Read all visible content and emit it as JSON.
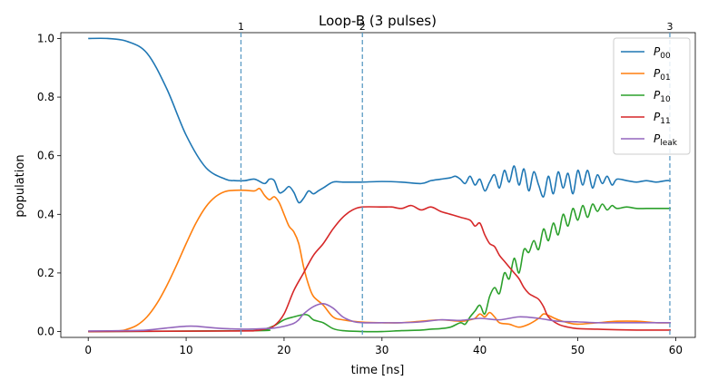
{
  "chart_data": {
    "type": "line",
    "title": "Loop-B (3 pulses)",
    "xlabel": "time [ns]",
    "ylabel": "population",
    "xlim": [
      -2.8,
      62.0
    ],
    "ylim": [
      -0.02,
      1.02
    ],
    "xticks": [
      0,
      10,
      20,
      30,
      40,
      50,
      60
    ],
    "yticks": [
      0.0,
      0.2,
      0.4,
      0.6,
      0.8,
      1.0
    ],
    "xtick_labels": [
      "0",
      "10",
      "20",
      "30",
      "40",
      "50",
      "60"
    ],
    "ytick_labels": [
      "0.0",
      "0.2",
      "0.4",
      "0.6",
      "0.8",
      "1.0"
    ],
    "grid": false,
    "legend_position": "top-right",
    "markers": [
      {
        "x": 15.6,
        "label": "1"
      },
      {
        "x": 28.0,
        "label": "2"
      },
      {
        "x": 59.4,
        "label": "3"
      }
    ],
    "series": [
      {
        "name": "P",
        "subscript": "00",
        "color": "#1f77b4",
        "x": [
          0,
          2,
          4,
          6,
          8,
          10,
          12,
          14,
          15,
          16,
          17,
          18,
          18.5,
          19,
          19.5,
          20,
          20.5,
          21,
          21.5,
          22,
          22.5,
          23,
          23.5,
          24,
          25,
          26,
          27,
          28,
          30,
          32,
          34,
          35,
          36,
          37,
          37.5,
          38,
          38.5,
          39,
          39.5,
          40,
          40.5,
          41,
          41.5,
          42,
          42.5,
          43,
          43.5,
          44,
          44.5,
          45,
          45.5,
          46,
          46.5,
          47,
          47.5,
          48,
          48.5,
          49,
          49.5,
          50,
          50.5,
          51,
          51.5,
          52,
          52.5,
          53,
          53.5,
          54,
          55,
          56,
          57,
          58,
          59,
          59.5
        ],
        "y": [
          1.0,
          1.0,
          0.99,
          0.95,
          0.83,
          0.67,
          0.56,
          0.52,
          0.515,
          0.515,
          0.52,
          0.505,
          0.52,
          0.515,
          0.475,
          0.48,
          0.495,
          0.475,
          0.44,
          0.455,
          0.48,
          0.47,
          0.48,
          0.49,
          0.51,
          0.51,
          0.51,
          0.51,
          0.512,
          0.51,
          0.505,
          0.515,
          0.52,
          0.525,
          0.53,
          0.52,
          0.505,
          0.53,
          0.5,
          0.52,
          0.48,
          0.51,
          0.535,
          0.49,
          0.55,
          0.51,
          0.565,
          0.5,
          0.555,
          0.48,
          0.545,
          0.5,
          0.46,
          0.53,
          0.47,
          0.545,
          0.49,
          0.54,
          0.47,
          0.55,
          0.5,
          0.55,
          0.49,
          0.535,
          0.505,
          0.53,
          0.5,
          0.52,
          0.515,
          0.51,
          0.515,
          0.51,
          0.515,
          0.515
        ]
      },
      {
        "name": "P",
        "subscript": "01",
        "color": "#ff7f0e",
        "x": [
          0,
          3,
          4,
          5,
          6,
          7,
          8,
          9,
          10,
          11,
          12,
          13,
          14,
          15,
          16,
          17,
          17.5,
          18,
          18.5,
          19,
          19.5,
          20,
          20.5,
          21,
          21.5,
          22,
          22.5,
          23,
          24,
          25,
          26,
          28,
          30,
          32,
          34,
          36,
          38,
          39,
          39.5,
          40,
          40.5,
          41,
          41.5,
          42,
          43,
          44,
          45,
          46,
          46.5,
          47,
          48,
          49,
          50,
          52,
          54,
          56,
          58,
          59.5
        ],
        "y": [
          0.0,
          0.002,
          0.008,
          0.022,
          0.05,
          0.095,
          0.155,
          0.225,
          0.3,
          0.37,
          0.425,
          0.46,
          0.478,
          0.482,
          0.482,
          0.48,
          0.488,
          0.465,
          0.45,
          0.46,
          0.44,
          0.4,
          0.36,
          0.34,
          0.3,
          0.22,
          0.16,
          0.12,
          0.09,
          0.05,
          0.04,
          0.032,
          0.03,
          0.03,
          0.035,
          0.04,
          0.035,
          0.04,
          0.045,
          0.06,
          0.05,
          0.065,
          0.05,
          0.03,
          0.025,
          0.015,
          0.025,
          0.045,
          0.06,
          0.055,
          0.04,
          0.03,
          0.025,
          0.03,
          0.035,
          0.035,
          0.03,
          0.03
        ]
      },
      {
        "name": "P",
        "subscript": "10",
        "color": "#2ca02c",
        "x": [
          0,
          17,
          18,
          19,
          20,
          21,
          22,
          22.5,
          23,
          24,
          25,
          26,
          28,
          30,
          32,
          34,
          35,
          36,
          37,
          38,
          38.5,
          39,
          39.5,
          40,
          40.5,
          41,
          41.5,
          42,
          42.5,
          43,
          43.5,
          44,
          44.5,
          45,
          45.5,
          46,
          46.5,
          47,
          47.5,
          48,
          48.5,
          49,
          49.5,
          50,
          50.5,
          51,
          51.5,
          52,
          52.5,
          53,
          53.5,
          54,
          55,
          56,
          57,
          58,
          59.5
        ],
        "y": [
          0.0,
          0.003,
          0.008,
          0.02,
          0.04,
          0.05,
          0.058,
          0.055,
          0.04,
          0.03,
          0.01,
          0.003,
          0.0,
          0.0,
          0.003,
          0.005,
          0.008,
          0.01,
          0.015,
          0.03,
          0.025,
          0.05,
          0.07,
          0.09,
          0.06,
          0.12,
          0.15,
          0.13,
          0.2,
          0.18,
          0.25,
          0.2,
          0.28,
          0.27,
          0.31,
          0.28,
          0.35,
          0.31,
          0.37,
          0.33,
          0.4,
          0.36,
          0.42,
          0.38,
          0.43,
          0.39,
          0.435,
          0.41,
          0.435,
          0.415,
          0.43,
          0.42,
          0.425,
          0.42,
          0.42,
          0.42,
          0.42
        ]
      },
      {
        "name": "P",
        "subscript": "11",
        "color": "#d62728",
        "x": [
          0,
          15,
          17,
          18,
          19,
          20,
          21,
          22,
          23,
          24,
          25,
          26,
          27,
          28,
          30,
          31,
          32,
          33,
          34,
          35,
          36,
          37,
          38,
          39,
          39.5,
          40,
          40.5,
          41,
          41.5,
          42,
          42.5,
          43,
          43.5,
          44,
          44.5,
          45,
          45.5,
          46,
          46.5,
          47,
          48,
          49,
          50,
          52,
          54,
          56,
          58,
          59.5
        ],
        "y": [
          0.0,
          0.002,
          0.003,
          0.008,
          0.02,
          0.06,
          0.14,
          0.2,
          0.26,
          0.3,
          0.35,
          0.39,
          0.415,
          0.425,
          0.425,
          0.425,
          0.42,
          0.43,
          0.415,
          0.425,
          0.41,
          0.4,
          0.39,
          0.38,
          0.36,
          0.37,
          0.33,
          0.3,
          0.29,
          0.26,
          0.24,
          0.22,
          0.2,
          0.18,
          0.15,
          0.13,
          0.12,
          0.11,
          0.085,
          0.05,
          0.025,
          0.015,
          0.01,
          0.008,
          0.006,
          0.005,
          0.005,
          0.005
        ]
      },
      {
        "name": "P",
        "subscript": "leak",
        "color": "#9467bd",
        "x": [
          0,
          4,
          6,
          8,
          10,
          11,
          12,
          14,
          16,
          18,
          19,
          20,
          21,
          21.5,
          22,
          23,
          24,
          25,
          26,
          27,
          28,
          30,
          32,
          34,
          36,
          38,
          40,
          42,
          44,
          46,
          48,
          50,
          52,
          54,
          56,
          58,
          59.5
        ],
        "y": [
          0.002,
          0.003,
          0.005,
          0.012,
          0.018,
          0.018,
          0.015,
          0.01,
          0.008,
          0.01,
          0.012,
          0.018,
          0.028,
          0.04,
          0.06,
          0.085,
          0.095,
          0.08,
          0.05,
          0.035,
          0.03,
          0.03,
          0.03,
          0.033,
          0.04,
          0.038,
          0.045,
          0.04,
          0.05,
          0.045,
          0.035,
          0.033,
          0.03,
          0.03,
          0.03,
          0.03,
          0.03
        ]
      }
    ]
  }
}
